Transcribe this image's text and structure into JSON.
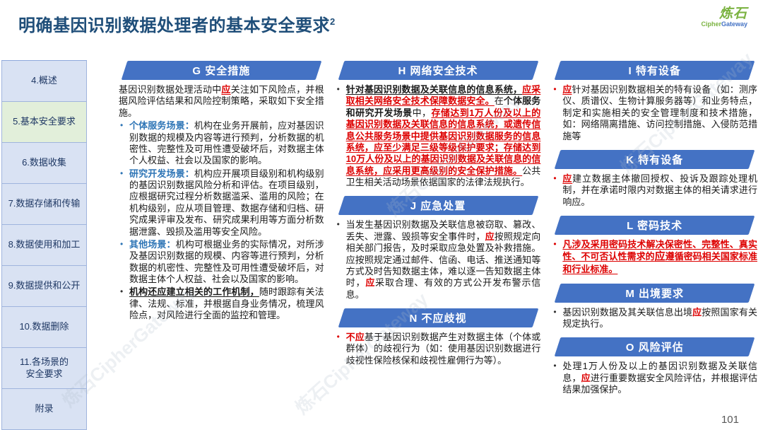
{
  "page": {
    "title": "明确基因识别数据处理者的基本安全要求",
    "title_superscript": "2",
    "page_number": "101"
  },
  "logo": {
    "name": "炼石",
    "sub_green": "Cipher",
    "sub_blue": "Gateway"
  },
  "watermark": {
    "text": "炼石CipherGateway"
  },
  "colors": {
    "accent_blue": "#4472c4",
    "title_blue": "#1f4e79",
    "label_blue": "#2e75b6",
    "alert_red": "#dd0000",
    "active_green": "#e2efda",
    "sidebar_blue": "#d9e2f3"
  },
  "sidebar": {
    "items": [
      {
        "label": "4.概述",
        "active": false
      },
      {
        "label": "5.基本安全要求",
        "active": true
      },
      {
        "label": "6.数据收集",
        "active": false
      },
      {
        "label": "7.数据存储和传输",
        "active": false
      },
      {
        "label": "8.数据使用和加工",
        "active": false
      },
      {
        "label": "9.数据提供和公开",
        "active": false
      },
      {
        "label": "10.数据删除",
        "active": false
      },
      {
        "label": "11.各场景的\n安全要求",
        "active": false
      },
      {
        "label": "附录",
        "active": false
      }
    ]
  },
  "columns": [
    {
      "sections": [
        {
          "header": "G 安全措施",
          "intro": [
            {
              "t": "基因识别数据处理活动中",
              "s": "n"
            },
            {
              "t": "应",
              "s": "ru"
            },
            {
              "t": "关注如下风险点，并根据风险评估结果和风险控制策略，采取如下安全措施。",
              "s": "n"
            }
          ],
          "bullets": [
            {
              "dot": "blue",
              "segs": [
                {
                  "t": "个体服务场景：",
                  "s": "lbl"
                },
                {
                  "t": "机构在业务开展前，应对基因识别数据的规模及内容等进行预判，分析数据的机密性、完整性及可用性遭受破坏后，对数据主体个人权益、社会以及国家的影响。",
                  "s": "n"
                }
              ]
            },
            {
              "dot": "blue",
              "segs": [
                {
                  "t": "研究开发场景：",
                  "s": "lbl"
                },
                {
                  "t": "机构应开展项目级别和机构级别的基因识别数据风险分析和评估。在项目级别，应根据研究过程分析数据滥采、滥用的风险；在机构级别，应从项目管理、数据存储和归档、研究成果评审及发布、研究成果利用等方面分析数据泄露、毁损及滥用等安全风险。",
                  "s": "n"
                }
              ]
            },
            {
              "dot": "blue",
              "segs": [
                {
                  "t": "其他场景：",
                  "s": "lbl"
                },
                {
                  "t": "机构可根据业务的实际情况，对所涉及基因识别数据的规模、内容等进行预判，分析数据的机密性、完整性及可用性遭受破坏后，对数据主体个人权益、社会以及国家的影响。",
                  "s": "n"
                }
              ]
            },
            {
              "dot": "black",
              "segs": [
                {
                  "t": "机构还应建立相关的工作机制，",
                  "s": "bu"
                },
                {
                  "t": "随时跟踪有关法律、法规、标准，并根据自身业务情况，梳理风险点，对风险进行全面的监控和管理。",
                  "s": "n"
                }
              ]
            }
          ]
        }
      ]
    },
    {
      "sections": [
        {
          "header": "H 网络安全技术",
          "bullets": [
            {
              "dot": "black",
              "segs": [
                {
                  "t": "针对基因识别数据及关联信息的信息系统，",
                  "s": "bu"
                },
                {
                  "t": "应采取相关网络安全技术保障数据安全。",
                  "s": "ru"
                },
                {
                  "t": "在",
                  "s": "n"
                },
                {
                  "t": "个体服务和研究开发场景",
                  "s": "b"
                },
                {
                  "t": "中，",
                  "s": "n"
                },
                {
                  "t": "存储达到1万人份及以上的基因识别数据及关联信息的信息系统，或遗传信息公共服务场景中提供基因识别数据服务的信息系统，应至少满足三级等级保护要求；存储达到10万人份及以上的基因识别数据及关联信息的信息系统，应采用更高级别的安全保护措施。",
                  "s": "ru"
                },
                {
                  "t": "公共卫生相关活动场景依据国家的法律法规执行。",
                  "s": "n"
                }
              ]
            }
          ]
        },
        {
          "header": "J 应急处置",
          "bullets": [
            {
              "dot": "black",
              "segs": [
                {
                  "t": "当发生基因识别数据及关联信息被窃取、篡改、丢失、泄露、毁损等安全事件时，",
                  "s": "n"
                },
                {
                  "t": "应",
                  "s": "r"
                },
                {
                  "t": "按照规定向相关部门报告，及时采取应急处置及补救措施。应按照规定通过邮件、信函、电话、推送通知等方式及时告知数据主体，难以逐一告知数据主体时，",
                  "s": "n"
                },
                {
                  "t": "应",
                  "s": "r"
                },
                {
                  "t": "采取合理、有效的方式公开发布警示信息。",
                  "s": "n"
                }
              ]
            }
          ]
        },
        {
          "header": "N 不应歧视",
          "bullets": [
            {
              "dot": "red",
              "segs": [
                {
                  "t": "不应",
                  "s": "r"
                },
                {
                  "t": "基于基因识别数据产生对数据主体（个体或群体）的歧视行为（如：使用基因识别数据进行歧视性保险核保和歧视性雇佣行为等）。",
                  "s": "n"
                }
              ]
            }
          ]
        }
      ]
    },
    {
      "sections": [
        {
          "header": "I 特有设备",
          "bullets": [
            {
              "dot": "red",
              "segs": [
                {
                  "t": "应",
                  "s": "ru"
                },
                {
                  "t": "针对基因识别数据相关的特有设备（如：测序仪、质谱仪、生物计算服务器等）和业务特点，制定和实施相关的安全管理制度和技术措施，如：网络隔离措施、访问控制措施、入侵防范措施等",
                  "s": "n"
                }
              ]
            }
          ]
        },
        {
          "header": "K 特有设备",
          "bullets": [
            {
              "dot": "red",
              "segs": [
                {
                  "t": "应",
                  "s": "ru"
                },
                {
                  "t": "建立数据主体撤回授权、投诉及跟踪处理机制，并在承诺时限内对数据主体的相关请求进行响应。",
                  "s": "n"
                }
              ]
            }
          ]
        },
        {
          "header": "L 密码技术",
          "bullets": [
            {
              "dot": "red",
              "segs": [
                {
                  "t": "凡涉及采用密码技术解决保密性、完整性、真实性、不可否认性需求的",
                  "s": "ru"
                },
                {
                  "t": "应",
                  "s": "rbig"
                },
                {
                  "t": "遵循密码相关国家标准和行业标准。",
                  "s": "ru"
                }
              ]
            }
          ]
        },
        {
          "header": "M 出境要求",
          "bullets": [
            {
              "dot": "black",
              "segs": [
                {
                  "t": "基因识别数据及其关联信息出境",
                  "s": "n"
                },
                {
                  "t": "应",
                  "s": "r"
                },
                {
                  "t": "按照国家有关规定执行。",
                  "s": "n"
                }
              ]
            }
          ]
        },
        {
          "header": "O 风险评估",
          "bullets": [
            {
              "dot": "black",
              "segs": [
                {
                  "t": "处理1万人份及以上的基因识别数据及关联信息，",
                  "s": "n"
                },
                {
                  "t": "应",
                  "s": "r"
                },
                {
                  "t": "进行重要数据安全风险评估，并根据评估结果加强保护。",
                  "s": "n"
                }
              ]
            }
          ]
        }
      ]
    }
  ]
}
